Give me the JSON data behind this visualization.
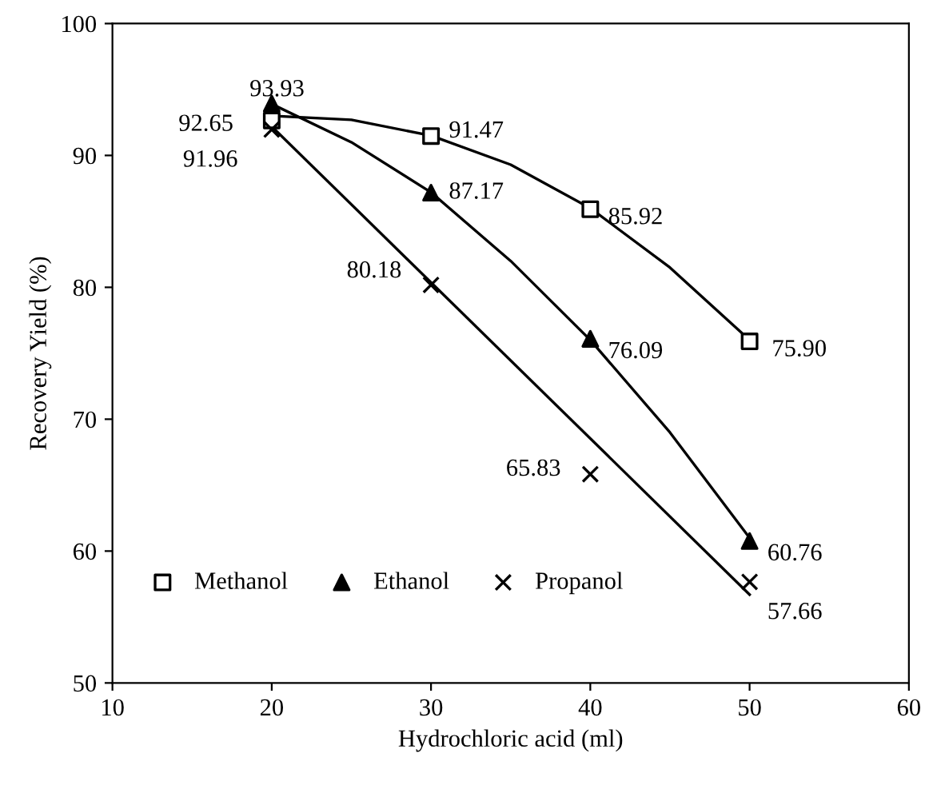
{
  "chart_data": {
    "type": "scatter",
    "xlabel": "Hydrochloric acid (ml)",
    "ylabel": "Recovery Yield (%)",
    "x": [
      20,
      30,
      40,
      50
    ],
    "xlim": [
      10,
      60
    ],
    "xticks": [
      10,
      20,
      30,
      40,
      50,
      60
    ],
    "ylim": [
      50,
      100
    ],
    "yticks": [
      50,
      60,
      70,
      80,
      90,
      100
    ],
    "grid": false,
    "legend": "bottom left",
    "series": [
      {
        "name": "Methanol",
        "color": "#000000",
        "marker": "square",
        "values": [
          92.65,
          91.47,
          85.92,
          75.9
        ],
        "value_labels": [
          "92.65",
          "91.47",
          "85.92",
          "75.90"
        ]
      },
      {
        "name": "Ethanol",
        "color": "#000000",
        "marker": "triangle",
        "values": [
          93.93,
          87.17,
          76.09,
          60.76
        ],
        "value_labels": [
          "93.93",
          "87.17",
          "76.09",
          "60.76"
        ]
      },
      {
        "name": "Propanol",
        "color": "#000000",
        "marker": "cross",
        "values": [
          91.96,
          80.18,
          65.83,
          57.66
        ],
        "value_labels": [
          "91.96",
          "80.18",
          "65.83",
          "57.66"
        ]
      },
      {
        "type": "line",
        "color": "#000000",
        "marker": "none",
        "line_style": "solid",
        "x": [
          20,
          25,
          30,
          35,
          40,
          45,
          50
        ],
        "values": [
          93.0,
          92.7,
          91.5,
          89.3,
          86.0,
          81.5,
          76.0
        ]
      },
      {
        "type": "line",
        "color": "#000000",
        "marker": "none",
        "line_style": "solid",
        "x": [
          20,
          25,
          30,
          35,
          40,
          45,
          50
        ],
        "values": [
          93.9,
          91.0,
          87.2,
          82.0,
          76.0,
          69.0,
          61.0
        ]
      },
      {
        "type": "line",
        "color": "#000000",
        "marker": "none",
        "line_style": "solid",
        "x": [
          20,
          50
        ],
        "values": [
          92.2,
          56.7
        ]
      }
    ]
  }
}
